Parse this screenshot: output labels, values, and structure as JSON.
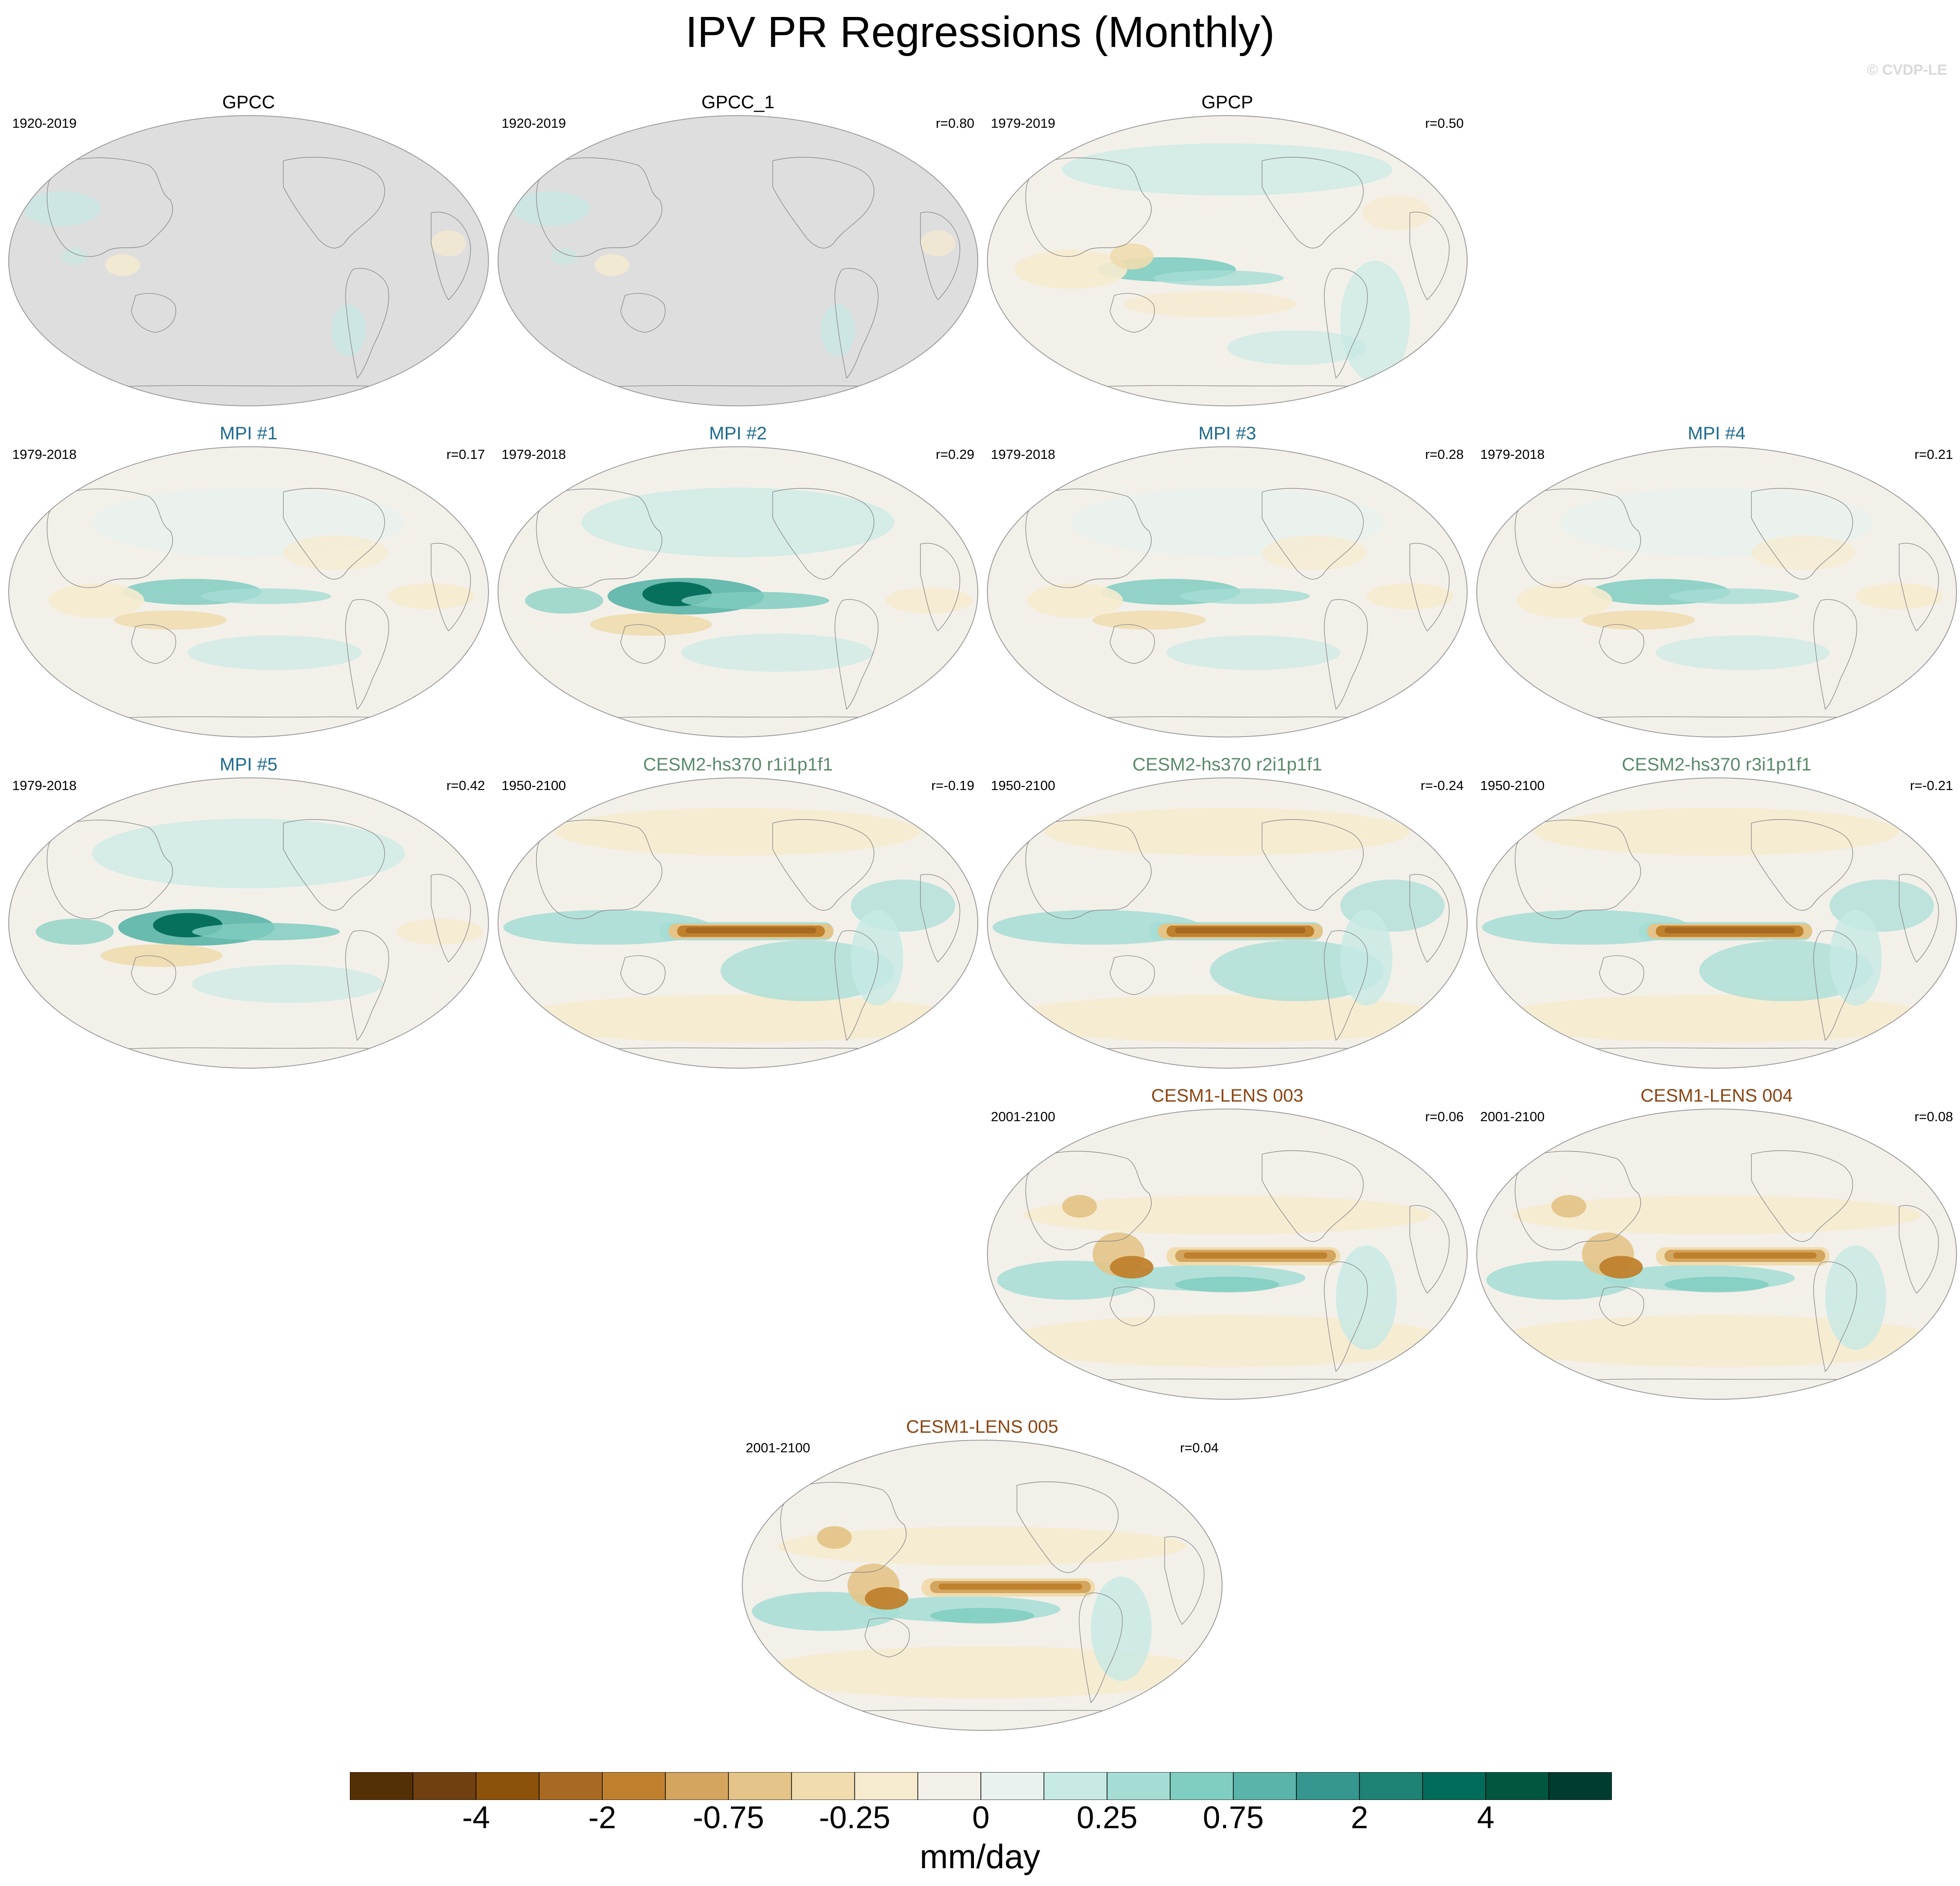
{
  "figure": {
    "title": "IPV PR Regressions (Monthly)",
    "credit": "© CVDP-LE",
    "colors": {
      "land_mask": "#dedede",
      "near_zero": "#f3f0ea",
      "coast": "#8a8a8a",
      "title_obs": "#000000",
      "title_mpi": "#1f6b8e",
      "title_cesm2": "#5b8a6b",
      "title_cesm1": "#8b4513"
    }
  },
  "panels": [
    {
      "id": "gpcc",
      "title": "GPCC",
      "title_color": "title_obs",
      "period": "1920-2019",
      "corr": "",
      "style": "obs_land"
    },
    {
      "id": "gpcc1",
      "title": "GPCC_1",
      "title_color": "title_obs",
      "period": "1920-2019",
      "corr": "r=0.80",
      "style": "obs_land"
    },
    {
      "id": "gpcp",
      "title": "GPCP",
      "title_color": "title_obs",
      "period": "1979-2019",
      "corr": "r=0.50",
      "style": "gpcp"
    },
    {
      "id": "mpi1",
      "title": "MPI #1",
      "title_color": "title_mpi",
      "period": "1979-2018",
      "corr": "r=0.17",
      "style": "mpi"
    },
    {
      "id": "mpi2",
      "title": "MPI #2",
      "title_color": "title_mpi",
      "period": "1979-2018",
      "corr": "r=0.29",
      "style": "mpi_strong"
    },
    {
      "id": "mpi3",
      "title": "MPI #3",
      "title_color": "title_mpi",
      "period": "1979-2018",
      "corr": "r=0.28",
      "style": "mpi"
    },
    {
      "id": "mpi4",
      "title": "MPI #4",
      "title_color": "title_mpi",
      "period": "1979-2018",
      "corr": "r=0.21",
      "style": "mpi"
    },
    {
      "id": "mpi5",
      "title": "MPI #5",
      "title_color": "title_mpi",
      "period": "1979-2018",
      "corr": "r=0.42",
      "style": "mpi_strong"
    },
    {
      "id": "cesm2r1",
      "title": "CESM2-hs370 r1i1p1f1",
      "title_color": "title_cesm2",
      "period": "1950-2100",
      "corr": "r=-0.19",
      "style": "cesm2"
    },
    {
      "id": "cesm2r2",
      "title": "CESM2-hs370 r2i1p1f1",
      "title_color": "title_cesm2",
      "period": "1950-2100",
      "corr": "r=-0.24",
      "style": "cesm2"
    },
    {
      "id": "cesm2r3",
      "title": "CESM2-hs370 r3i1p1f1",
      "title_color": "title_cesm2",
      "period": "1950-2100",
      "corr": "r=-0.21",
      "style": "cesm2"
    },
    {
      "id": "lens003",
      "title": "CESM1-LENS 003",
      "title_color": "title_cesm1",
      "period": "2001-2100",
      "corr": "r=0.06",
      "style": "cesm1"
    },
    {
      "id": "lens004",
      "title": "CESM1-LENS 004",
      "title_color": "title_cesm1",
      "period": "2001-2100",
      "corr": "r=0.08",
      "style": "cesm1"
    },
    {
      "id": "lens005",
      "title": "CESM1-LENS 005",
      "title_color": "title_cesm1",
      "period": "2001-2100",
      "corr": "r=0.04",
      "style": "cesm1"
    }
  ],
  "colorbar": {
    "units": "mm/day",
    "colors": [
      "#543005",
      "#6f4010",
      "#8c510a",
      "#a86a22",
      "#bf812d",
      "#d3a55e",
      "#e4c488",
      "#f0dcae",
      "#f6ebcf",
      "#f3f0ea",
      "#e9f2ef",
      "#c7eae5",
      "#a5ddd5",
      "#80cdc1",
      "#5ab4a9",
      "#35978f",
      "#1e8274",
      "#016c59",
      "#02563f",
      "#003c30"
    ],
    "labels": [
      {
        "text": "-4",
        "index": 2
      },
      {
        "text": "-2",
        "index": 4
      },
      {
        "text": "-0.75",
        "index": 6
      },
      {
        "text": "-0.25",
        "index": 8
      },
      {
        "text": "0",
        "index": 10
      },
      {
        "text": "0.25",
        "index": 12
      },
      {
        "text": "0.75",
        "index": 14
      },
      {
        "text": "2",
        "index": 16
      },
      {
        "text": "4",
        "index": 18
      }
    ]
  }
}
